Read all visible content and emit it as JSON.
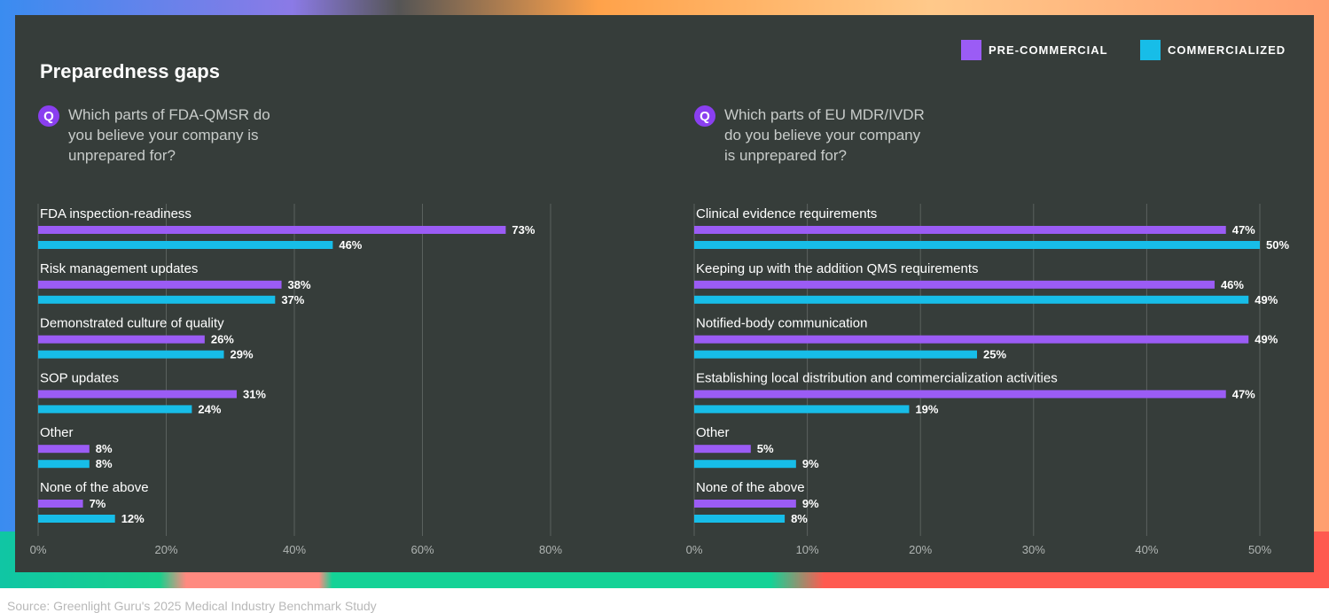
{
  "title": "Preparedness gaps",
  "legend": {
    "pre": "PRE-COMMERCIAL",
    "com": "COMMERCIALIZED"
  },
  "colors": {
    "pre": "#9b5cf5",
    "com": "#17bde8",
    "grid": "#5a615e",
    "text": "#ffffff",
    "tick": "#b0b5b3"
  },
  "question_icon": "Q",
  "source": "Source: Greenlight Guru's 2025 Medical Industry Benchmark Study",
  "chart_data": [
    {
      "type": "bar",
      "orientation": "horizontal",
      "question": "Which parts of FDA-QMSR do you believe your company is unprepared for?",
      "question_lines": [
        "Which parts of FDA-QMSR do",
        "you believe your company is",
        "unprepared for?"
      ],
      "categories": [
        "FDA inspection-readiness",
        "Risk management updates",
        "Demonstrated culture of quality",
        "SOP updates",
        "Other",
        "None of the above"
      ],
      "series": [
        {
          "name": "PRE-COMMERCIAL",
          "values": [
            73,
            38,
            26,
            31,
            8,
            7
          ]
        },
        {
          "name": "COMMERCIALIZED",
          "values": [
            46,
            37,
            29,
            24,
            8,
            12
          ]
        }
      ],
      "xlim": [
        0,
        80
      ],
      "xticks": [
        0,
        20,
        40,
        60,
        80
      ],
      "tick_labels": [
        "0%",
        "20%",
        "40%",
        "60%",
        "80%"
      ],
      "grid": true
    },
    {
      "type": "bar",
      "orientation": "horizontal",
      "question": "Which parts of EU MDR/IVDR do you believe your company is unprepared for?",
      "question_lines": [
        "Which parts of EU MDR/IVDR",
        "do you believe your company",
        "is unprepared for?"
      ],
      "categories": [
        "Clinical evidence requirements",
        "Keeping up with the addition QMS requirements",
        "Notified-body communication",
        "Establishing local distribution and commercialization activities",
        "Other",
        "None of the above"
      ],
      "series": [
        {
          "name": "PRE-COMMERCIAL",
          "values": [
            47,
            46,
            49,
            47,
            5,
            9
          ]
        },
        {
          "name": "COMMERCIALIZED",
          "values": [
            50,
            49,
            25,
            19,
            9,
            8
          ]
        }
      ],
      "xlim": [
        0,
        50
      ],
      "xticks": [
        0,
        10,
        20,
        30,
        40,
        50
      ],
      "tick_labels": [
        "0%",
        "10%",
        "20%",
        "30%",
        "40%",
        "50%"
      ],
      "grid": true
    }
  ]
}
